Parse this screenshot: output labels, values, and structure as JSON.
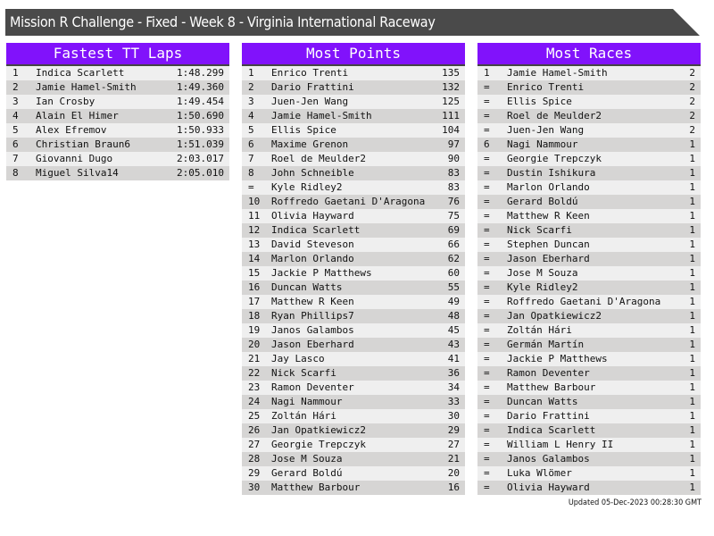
{
  "title": "Mission R Challenge - Fixed - Week 8 - Virginia International Raceway",
  "updated": "Updated 05-Dec-2023 00:28:30 GMT",
  "colors": {
    "header": "#8112fb",
    "title_bar": "#4a4a4a"
  },
  "panels": [
    {
      "title": "Fastest TT Laps",
      "rows": [
        [
          "1",
          "Indica Scarlett",
          "1:48.299"
        ],
        [
          "2",
          "Jamie Hamel-Smith",
          "1:49.360"
        ],
        [
          "3",
          "Ian Crosby",
          "1:49.454"
        ],
        [
          "4",
          "Alain El Himer",
          "1:50.690"
        ],
        [
          "5",
          "Alex Efremov",
          "1:50.933"
        ],
        [
          "6",
          "Christian Braun6",
          "1:51.039"
        ],
        [
          "7",
          "Giovanni Dugo",
          "2:03.017"
        ],
        [
          "8",
          "Miguel Silva14",
          "2:05.010"
        ]
      ]
    },
    {
      "title": "Most Points",
      "rows": [
        [
          "1",
          "Enrico Trenti",
          "135"
        ],
        [
          "2",
          "Dario Frattini",
          "132"
        ],
        [
          "3",
          "Juen-Jen Wang",
          "125"
        ],
        [
          "4",
          "Jamie Hamel-Smith",
          "111"
        ],
        [
          "5",
          "Ellis Spice",
          "104"
        ],
        [
          "6",
          "Maxime Grenon",
          "97"
        ],
        [
          "7",
          "Roel de Meulder2",
          "90"
        ],
        [
          "8",
          "John Schneible",
          "83"
        ],
        [
          "=",
          "Kyle Ridley2",
          "83"
        ],
        [
          "10",
          "Roffredo Gaetani D'Aragona",
          "76"
        ],
        [
          "11",
          "Olivia Hayward",
          "75"
        ],
        [
          "12",
          "Indica Scarlett",
          "69"
        ],
        [
          "13",
          "David Steveson",
          "66"
        ],
        [
          "14",
          "Marlon Orlando",
          "62"
        ],
        [
          "15",
          "Jackie P Matthews",
          "60"
        ],
        [
          "16",
          "Duncan Watts",
          "55"
        ],
        [
          "17",
          "Matthew R Keen",
          "49"
        ],
        [
          "18",
          "Ryan Phillips7",
          "48"
        ],
        [
          "19",
          "Janos Galambos",
          "45"
        ],
        [
          "20",
          "Jason Eberhard",
          "43"
        ],
        [
          "21",
          "Jay Lasco",
          "41"
        ],
        [
          "22",
          "Nick Scarfi",
          "36"
        ],
        [
          "23",
          "Ramon Deventer",
          "34"
        ],
        [
          "24",
          "Nagi Nammour",
          "33"
        ],
        [
          "25",
          "Zoltán Hári",
          "30"
        ],
        [
          "26",
          "Jan Opatkiewicz2",
          "29"
        ],
        [
          "27",
          "Georgie Trepczyk",
          "27"
        ],
        [
          "28",
          "Jose M Souza",
          "21"
        ],
        [
          "29",
          "Gerard Boldú",
          "20"
        ],
        [
          "30",
          "Matthew Barbour",
          "16"
        ]
      ]
    },
    {
      "title": "Most Races",
      "rows": [
        [
          "1",
          "Jamie Hamel-Smith",
          "2"
        ],
        [
          "=",
          "Enrico Trenti",
          "2"
        ],
        [
          "=",
          "Ellis Spice",
          "2"
        ],
        [
          "=",
          "Roel de Meulder2",
          "2"
        ],
        [
          "=",
          "Juen-Jen Wang",
          "2"
        ],
        [
          "6",
          "Nagi Nammour",
          "1"
        ],
        [
          "=",
          "Georgie Trepczyk",
          "1"
        ],
        [
          "=",
          "Dustin Ishikura",
          "1"
        ],
        [
          "=",
          "Marlon Orlando",
          "1"
        ],
        [
          "=",
          "Gerard Boldú",
          "1"
        ],
        [
          "=",
          "Matthew R Keen",
          "1"
        ],
        [
          "=",
          "Nick Scarfi",
          "1"
        ],
        [
          "=",
          "Stephen Duncan",
          "1"
        ],
        [
          "=",
          "Jason Eberhard",
          "1"
        ],
        [
          "=",
          "Jose M Souza",
          "1"
        ],
        [
          "=",
          "Kyle Ridley2",
          "1"
        ],
        [
          "=",
          "Roffredo Gaetani D'Aragona",
          "1"
        ],
        [
          "=",
          "Jan Opatkiewicz2",
          "1"
        ],
        [
          "=",
          "Zoltán Hári",
          "1"
        ],
        [
          "=",
          "Germán Martín",
          "1"
        ],
        [
          "=",
          "Jackie P Matthews",
          "1"
        ],
        [
          "=",
          "Ramon Deventer",
          "1"
        ],
        [
          "=",
          "Matthew Barbour",
          "1"
        ],
        [
          "=",
          "Duncan Watts",
          "1"
        ],
        [
          "=",
          "Dario Frattini",
          "1"
        ],
        [
          "=",
          "Indica Scarlett",
          "1"
        ],
        [
          "=",
          "William L Henry II",
          "1"
        ],
        [
          "=",
          "Janos Galambos",
          "1"
        ],
        [
          "=",
          "Luka Wlömer",
          "1"
        ],
        [
          "=",
          "Olivia Hayward",
          "1"
        ]
      ]
    }
  ]
}
